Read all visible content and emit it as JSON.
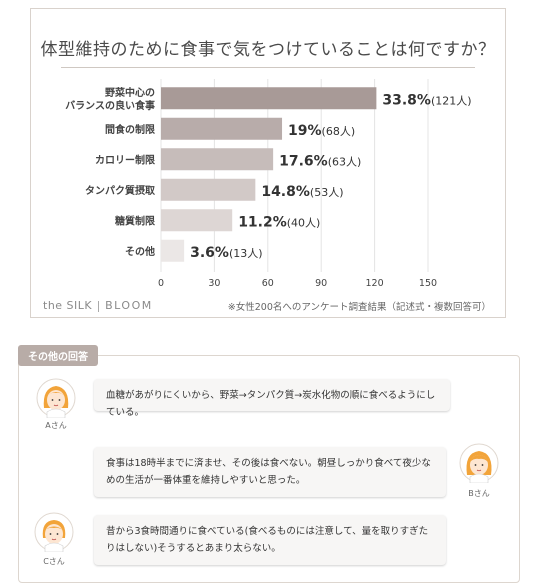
{
  "chart_data": {
    "type": "bar",
    "orientation": "horizontal",
    "title": "体型維持のために食事で気をつけていることは何ですか？",
    "categories": [
      [
        "野菜中心の",
        "バランスの良い食事"
      ],
      [
        "間食の制限"
      ],
      [
        "カロリー制限"
      ],
      [
        "タンパク質摂取"
      ],
      [
        "糖質制限"
      ],
      [
        "その他"
      ]
    ],
    "values": [
      121,
      68,
      63,
      53,
      40,
      13
    ],
    "pct_labels": [
      "33.8%",
      "19%",
      "17.6%",
      "14.8%",
      "11.2%",
      "3.6%"
    ],
    "count_labels": [
      "(121人)",
      "(68人)",
      "(63人)",
      "(53人)",
      "(40人)",
      "(13人)"
    ],
    "bar_colors": [
      "#a89a97",
      "#b8acaa",
      "#c6bcba",
      "#d2c9c7",
      "#ddd6d4",
      "#ebe7e6"
    ],
    "xlim": [
      0,
      150
    ],
    "xticks": [
      "0",
      "30",
      "60",
      "90",
      "120",
      "150"
    ],
    "grid": true,
    "legend": "none"
  },
  "brand": {
    "name": "the SILK",
    "sub": "BLOOM"
  },
  "note": "※女性200名へのアンケート調査結果（記述式・複数回答可）",
  "others": {
    "tag": "その他の回答",
    "answers": [
      {
        "name": "Aさん",
        "text": "血糖があがりにくいから、野菜→タンパク質→炭水化物の順に食べるようにしている。"
      },
      {
        "name": "Bさん",
        "text": "食事は18時半までに済ませ、その後は食べない。朝昼しっかり食べて夜少なめの生活が一番体重を維持しやすいと思った。"
      },
      {
        "name": "Cさん",
        "text": "昔から3食時間通りに食べている(食べるものには注意して、量を取りすぎたりはしない)そうするとあまり太らない。"
      }
    ]
  }
}
